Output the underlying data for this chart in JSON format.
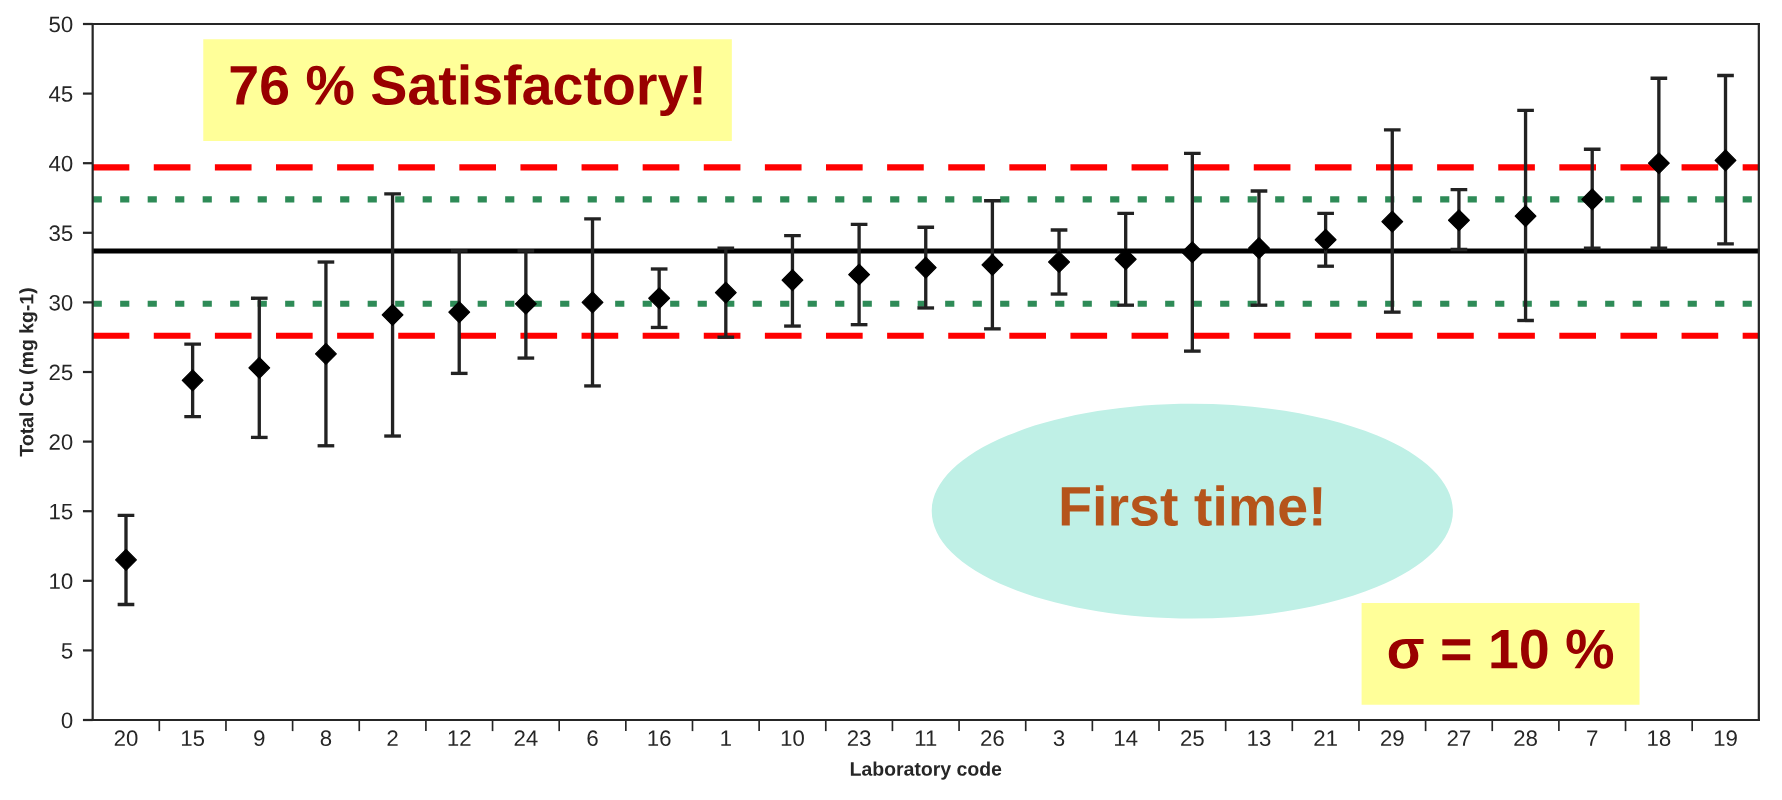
{
  "chart_data": {
    "type": "scatter",
    "xlabel": "Laboratory code",
    "ylabel": "Total Cu (mg kg-1)",
    "categories": [
      "20",
      "15",
      "9",
      "8",
      "2",
      "12",
      "24",
      "6",
      "16",
      "1",
      "10",
      "23",
      "11",
      "26",
      "3",
      "14",
      "25",
      "13",
      "21",
      "29",
      "27",
      "28",
      "7",
      "18",
      "19"
    ],
    "series": [
      {
        "color": "#000000",
        "values": [
          11.5,
          24.4,
          25.3,
          26.3,
          29.1,
          29.3,
          29.9,
          30.0,
          30.3,
          30.7,
          31.6,
          32.0,
          32.5,
          32.7,
          32.9,
          33.1,
          33.6,
          33.9,
          34.5,
          35.8,
          35.9,
          36.2,
          37.4,
          40.0,
          40.2
        ],
        "errors": [
          [
            8.3,
            14.7
          ],
          [
            21.8,
            27.0
          ],
          [
            20.3,
            30.3
          ],
          [
            19.7,
            32.9
          ],
          [
            20.4,
            37.8
          ],
          [
            24.9,
            33.7
          ],
          [
            26.0,
            33.7
          ],
          [
            24.0,
            36.0
          ],
          [
            28.2,
            32.4
          ],
          [
            27.5,
            33.9
          ],
          [
            28.3,
            34.8
          ],
          [
            28.4,
            35.6
          ],
          [
            29.6,
            35.4
          ],
          [
            28.1,
            37.3
          ],
          [
            30.6,
            35.2
          ],
          [
            29.8,
            36.4
          ],
          [
            26.5,
            40.7
          ],
          [
            29.8,
            38.0
          ],
          [
            32.6,
            36.4
          ],
          [
            29.3,
            42.4
          ],
          [
            33.8,
            38.1
          ],
          [
            28.7,
            43.8
          ],
          [
            33.9,
            41.0
          ],
          [
            33.9,
            46.1
          ],
          [
            34.2,
            46.3
          ]
        ]
      }
    ],
    "marker": "diamond",
    "ylim": [
      0,
      50
    ],
    "yticks": [
      0,
      5,
      10,
      15,
      20,
      25,
      30,
      35,
      40,
      45,
      50
    ],
    "grid": false,
    "legend": false,
    "ref_lines": [
      {
        "axis": "y",
        "value": 33.7,
        "color": "#000000",
        "line_style": "solid"
      },
      {
        "axis": "y",
        "value": 37.4,
        "color": "#2e8b57",
        "line_style": "dotted"
      },
      {
        "axis": "y",
        "value": 29.9,
        "color": "#2e8b57",
        "line_style": "dotted"
      },
      {
        "axis": "y",
        "value": 39.7,
        "color": "#ff0000",
        "line_style": "dashed"
      },
      {
        "axis": "y",
        "value": 27.6,
        "color": "#ff0000",
        "line_style": "dashed"
      }
    ],
    "annotations": [
      "76 % Satisfactory!",
      "First time!",
      "σ = 10 %"
    ]
  }
}
